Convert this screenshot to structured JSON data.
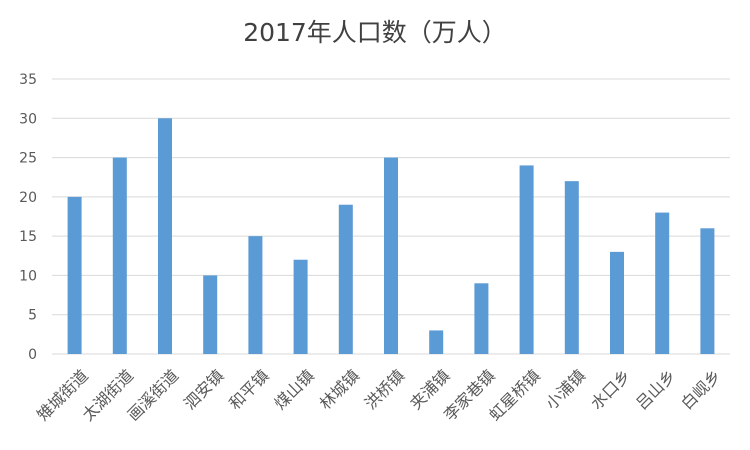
{
  "chart_data": {
    "type": "bar",
    "title": "2017年人口数（万人）",
    "categories": [
      "雉城街道",
      "太湖街道",
      "画溪街道",
      "泗安镇",
      "和平镇",
      "煤山镇",
      "林城镇",
      "洪桥镇",
      "夹浦镇",
      "李家巷镇",
      "虹星桥镇",
      "小浦镇",
      "水口乡",
      "吕山乡",
      "白岘乡"
    ],
    "values": [
      20,
      25,
      30,
      10,
      15,
      12,
      19,
      25,
      3,
      9,
      24,
      22,
      13,
      18,
      16
    ],
    "ylim": [
      0,
      35
    ],
    "yticks": [
      0,
      5,
      10,
      15,
      20,
      25,
      30,
      35
    ],
    "grid": true,
    "legend": "none",
    "bar_color": "#5B9BD5",
    "grid_color": "#D9D9D9"
  }
}
